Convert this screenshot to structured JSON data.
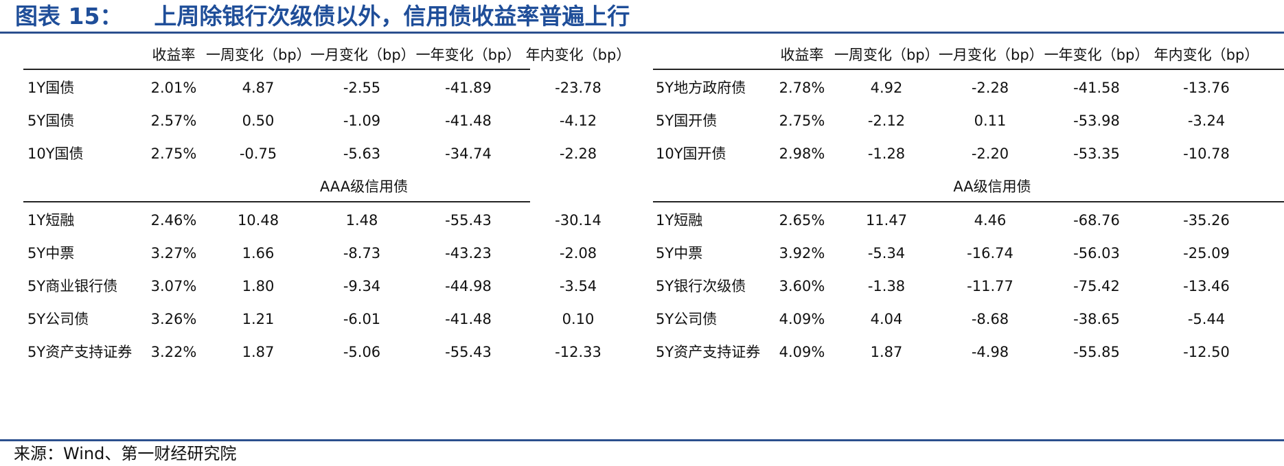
{
  "title": {
    "number": "图表 15：",
    "text": "上周除银行次级债以外，信用债收益率普遍上行"
  },
  "source": "来源：Wind、第一财经研究院",
  "headers": [
    "收益率",
    "一周变化（bp）",
    "一月变化（bp）",
    "一年变化（bp）",
    "年内变化（bp）"
  ],
  "left": {
    "top_rows": [
      {
        "name": "1Y国债",
        "yield": "2.01%",
        "w": "4.87",
        "m": "-2.55",
        "y": "-41.89",
        "ytd": "-23.78"
      },
      {
        "name": "5Y国债",
        "yield": "2.57%",
        "w": "0.50",
        "m": "-1.09",
        "y": "-41.48",
        "ytd": "-4.12"
      },
      {
        "name": "10Y国债",
        "yield": "2.75%",
        "w": "-0.75",
        "m": "-5.63",
        "y": "-34.74",
        "ytd": "-2.28"
      }
    ],
    "section": "AAA级信用债",
    "bottom_rows": [
      {
        "name": "1Y短融",
        "yield": "2.46%",
        "w": "10.48",
        "m": "1.48",
        "y": "-55.43",
        "ytd": "-30.14"
      },
      {
        "name": "5Y中票",
        "yield": "3.27%",
        "w": "1.66",
        "m": "-8.73",
        "y": "-43.23",
        "ytd": "-2.08"
      },
      {
        "name": "5Y商业银行债",
        "yield": "3.07%",
        "w": "1.80",
        "m": "-9.34",
        "y": "-44.98",
        "ytd": "-3.54"
      },
      {
        "name": "5Y公司债",
        "yield": "3.26%",
        "w": "1.21",
        "m": "-6.01",
        "y": "-41.48",
        "ytd": "0.10"
      },
      {
        "name": "5Y资产支持证券",
        "yield": "3.22%",
        "w": "1.87",
        "m": "-5.06",
        "y": "-55.43",
        "ytd": "-12.33"
      }
    ]
  },
  "right": {
    "top_rows": [
      {
        "name": "5Y地方政府债",
        "yield": "2.78%",
        "w": "4.92",
        "m": "-2.28",
        "y": "-41.58",
        "ytd": "-13.76"
      },
      {
        "name": "5Y国开债",
        "yield": "2.75%",
        "w": "-2.12",
        "m": "0.11",
        "y": "-53.98",
        "ytd": "-3.24"
      },
      {
        "name": "10Y国开债",
        "yield": "2.98%",
        "w": "-1.28",
        "m": "-2.20",
        "y": "-53.35",
        "ytd": "-10.78"
      }
    ],
    "section": "AA级信用债",
    "bottom_rows": [
      {
        "name": "1Y短融",
        "yield": "2.65%",
        "w": "11.47",
        "m": "4.46",
        "y": "-68.76",
        "ytd": "-35.26"
      },
      {
        "name": "5Y中票",
        "yield": "3.92%",
        "w": "-5.34",
        "m": "-16.74",
        "y": "-56.03",
        "ytd": "-25.09"
      },
      {
        "name": "5Y银行次级债",
        "yield": "3.60%",
        "w": "-1.38",
        "m": "-11.77",
        "y": "-75.42",
        "ytd": "-13.46"
      },
      {
        "name": "5Y公司债",
        "yield": "4.09%",
        "w": "4.04",
        "m": "-8.68",
        "y": "-38.65",
        "ytd": "-5.44"
      },
      {
        "name": "5Y资产支持证券",
        "yield": "4.09%",
        "w": "1.87",
        "m": "-4.98",
        "y": "-55.85",
        "ytd": "-12.50"
      }
    ]
  }
}
